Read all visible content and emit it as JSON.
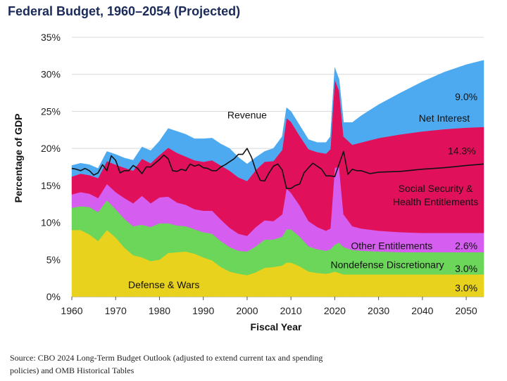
{
  "title": "Federal Budget, 1960–2054 (Projected)",
  "source": "Source: CBO 2024 Long-Term Budget Outlook (adjusted to extend current tax and spending policies) and OMB Historical Tables",
  "chart_data": {
    "type": "area",
    "stacked": true,
    "title": "Federal Budget, 1960–2054 (Projected)",
    "xlabel": "Fiscal Year",
    "ylabel": "Percentage of GDP",
    "xlim": [
      1960,
      2054
    ],
    "ylim": [
      0,
      35
    ],
    "xticks": [
      1960,
      1970,
      1980,
      1990,
      2000,
      2010,
      2020,
      2030,
      2040,
      2050
    ],
    "xtick_labels": [
      "1960",
      "1970",
      "1980",
      "1990",
      "2000",
      "2010",
      "2020",
      "2030",
      "2040",
      "2050"
    ],
    "yticks": [
      0,
      5,
      10,
      15,
      20,
      25,
      30,
      35
    ],
    "ytick_labels": [
      "0%",
      "5%",
      "10%",
      "15%",
      "20%",
      "25%",
      "30%",
      "35%"
    ],
    "x": [
      1960,
      1962,
      1964,
      1966,
      1968,
      1970,
      1972,
      1974,
      1976,
      1978,
      1980,
      1982,
      1984,
      1986,
      1988,
      1990,
      1992,
      1994,
      1996,
      1998,
      2000,
      2002,
      2004,
      2006,
      2008,
      2009,
      2010,
      2012,
      2014,
      2016,
      2018,
      2019,
      2020,
      2021,
      2022,
      2024,
      2026,
      2030,
      2035,
      2040,
      2045,
      2050,
      2054
    ],
    "series": [
      {
        "name": "Defense & Wars",
        "color": "#e8d21e",
        "values": [
          9.0,
          9.0,
          8.4,
          7.5,
          9.0,
          8.0,
          6.6,
          5.6,
          5.3,
          4.8,
          5.0,
          5.9,
          6.0,
          6.1,
          5.8,
          5.3,
          4.9,
          4.0,
          3.4,
          3.1,
          2.9,
          3.3,
          3.9,
          4.0,
          4.2,
          4.6,
          4.6,
          4.1,
          3.4,
          3.2,
          3.1,
          3.2,
          3.4,
          3.2,
          3.0,
          3.0,
          3.0,
          3.0,
          3.0,
          3.0,
          3.0,
          3.0,
          3.0
        ]
      },
      {
        "name": "Nondefense Discretionary",
        "color": "#6bd65a",
        "values": [
          3.0,
          3.2,
          3.7,
          3.9,
          4.0,
          3.8,
          3.9,
          3.9,
          4.4,
          4.6,
          4.9,
          4.0,
          3.6,
          3.4,
          3.3,
          3.4,
          3.6,
          3.5,
          3.3,
          3.1,
          3.2,
          3.5,
          3.8,
          3.7,
          3.9,
          4.5,
          4.5,
          4.0,
          3.4,
          3.2,
          3.1,
          3.2,
          3.6,
          4.1,
          3.7,
          3.3,
          3.2,
          3.1,
          3.0,
          3.0,
          3.0,
          3.0,
          3.0
        ]
      },
      {
        "name": "Other Entitlements",
        "color": "#d55ef0",
        "values": [
          1.8,
          1.9,
          1.8,
          1.9,
          2.2,
          2.3,
          2.8,
          3.1,
          3.9,
          3.2,
          3.5,
          3.6,
          3.1,
          2.9,
          2.7,
          2.9,
          3.1,
          2.9,
          2.6,
          2.3,
          2.1,
          2.6,
          2.6,
          2.5,
          3.0,
          5.5,
          4.9,
          4.2,
          3.4,
          3.0,
          2.7,
          2.8,
          10.4,
          10.2,
          4.4,
          3.2,
          3.0,
          2.8,
          2.7,
          2.6,
          2.6,
          2.6,
          2.6
        ]
      },
      {
        "name": "Social Security & Health Entitlements",
        "color": "#e0115a",
        "values": [
          2.4,
          2.5,
          2.5,
          2.7,
          3.1,
          3.7,
          4.1,
          4.4,
          5.0,
          5.4,
          5.7,
          6.6,
          6.7,
          6.5,
          6.6,
          6.6,
          6.8,
          7.3,
          7.7,
          7.6,
          7.4,
          7.7,
          7.9,
          8.1,
          8.7,
          9.5,
          9.6,
          9.4,
          9.7,
          10.1,
          10.4,
          10.7,
          11.9,
          10.3,
          10.5,
          11.0,
          11.6,
          12.5,
          13.2,
          13.7,
          14.0,
          14.2,
          14.3
        ]
      },
      {
        "name": "Net Interest",
        "color": "#4daaf0",
        "values": [
          1.5,
          1.4,
          1.4,
          1.3,
          1.3,
          1.4,
          1.3,
          1.4,
          1.6,
          1.7,
          1.9,
          2.6,
          2.9,
          3.0,
          2.9,
          3.1,
          3.0,
          2.9,
          3.0,
          2.7,
          2.3,
          1.7,
          1.4,
          1.7,
          1.8,
          1.4,
          1.4,
          1.4,
          1.3,
          1.3,
          1.5,
          1.7,
          1.6,
          1.5,
          1.9,
          3.0,
          3.6,
          4.5,
          5.6,
          6.7,
          7.7,
          8.5,
          9.0
        ]
      }
    ],
    "revenue": {
      "name": "Revenue",
      "x": [
        1960,
        1961,
        1962,
        1963,
        1964,
        1965,
        1966,
        1967,
        1968,
        1969,
        1970,
        1971,
        1972,
        1973,
        1974,
        1975,
        1976,
        1977,
        1978,
        1979,
        1980,
        1981,
        1982,
        1983,
        1984,
        1985,
        1986,
        1987,
        1988,
        1989,
        1990,
        1991,
        1992,
        1993,
        1994,
        1995,
        1996,
        1997,
        1998,
        1999,
        2000,
        2001,
        2002,
        2003,
        2004,
        2005,
        2006,
        2007,
        2008,
        2009,
        2010,
        2011,
        2012,
        2013,
        2014,
        2015,
        2016,
        2017,
        2018,
        2019,
        2020,
        2021,
        2022,
        2023,
        2024,
        2025,
        2026,
        2028,
        2030,
        2035,
        2040,
        2045,
        2050,
        2054
      ],
      "values": [
        17.3,
        17.2,
        17.0,
        17.3,
        17.0,
        16.4,
        16.7,
        17.8,
        17.0,
        19.0,
        18.4,
        16.7,
        17.0,
        17.0,
        17.7,
        17.3,
        16.6,
        17.5,
        17.5,
        18.0,
        18.5,
        19.1,
        18.6,
        17.0,
        16.9,
        17.2,
        17.0,
        17.9,
        17.6,
        17.8,
        17.4,
        17.3,
        17.0,
        17.0,
        17.5,
        17.8,
        18.2,
        18.6,
        19.2,
        19.2,
        20.0,
        18.8,
        17.0,
        15.7,
        15.6,
        16.7,
        17.6,
        17.9,
        17.1,
        14.6,
        14.6,
        15.0,
        15.2,
        16.7,
        17.4,
        18.0,
        17.6,
        17.2,
        16.3,
        16.3,
        16.2,
        17.9,
        19.6,
        16.5,
        17.2,
        17.0,
        17.0,
        16.6,
        16.8,
        16.9,
        17.2,
        17.4,
        17.7,
        17.9
      ]
    },
    "annotations": [
      {
        "text": "Revenue",
        "x": 2000,
        "y": 24.5
      },
      {
        "text": "Net Interest",
        "x": 2045,
        "y": 24.1
      },
      {
        "text": "9.0%",
        "x": 2050,
        "y": 27.0
      },
      {
        "text": "14.3%",
        "x": 2049,
        "y": 19.7
      },
      {
        "text": "Social Security &",
        "x": 2043,
        "y": 14.6
      },
      {
        "text": "Health Entitlements",
        "x": 2043,
        "y": 12.8
      },
      {
        "text": "Other Entitlements",
        "x": 2033,
        "y": 6.9
      },
      {
        "text": "2.6%",
        "x": 2050,
        "y": 6.9
      },
      {
        "text": "Nondefense Discretionary",
        "x": 2032,
        "y": 4.3
      },
      {
        "text": "3.0%",
        "x": 2050,
        "y": 3.8
      },
      {
        "text": "Defense & Wars",
        "x": 1981,
        "y": 1.6
      },
      {
        "text": "3.0%",
        "x": 2050,
        "y": 1.2
      }
    ]
  }
}
